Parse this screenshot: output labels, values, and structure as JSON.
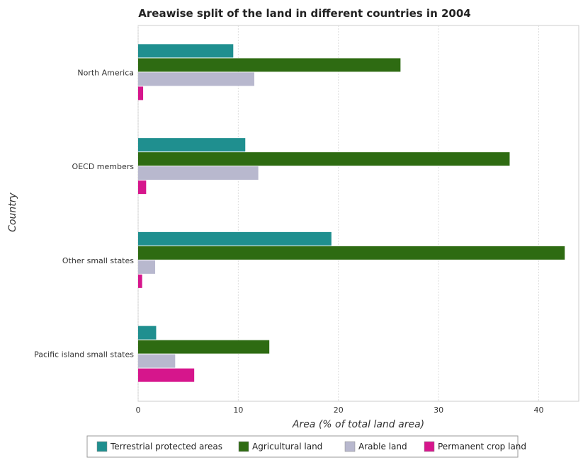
{
  "chart_data": {
    "type": "bar",
    "orientation": "horizontal",
    "title": "Areawise split of the land in different countries in 2004",
    "xlabel": "Area (% of total land area)",
    "ylabel": "Country",
    "categories": [
      "North America",
      "OECD members",
      "Other small states",
      "Pacific island small states"
    ],
    "xlim": [
      0,
      44
    ],
    "xticks": [
      0,
      10,
      20,
      30,
      40
    ],
    "grid": true,
    "legend_position": "bottom",
    "series": [
      {
        "name": "Terrestrial protected areas",
        "color": "#1f8f8f",
        "values": [
          9.5,
          10.7,
          19.3,
          1.8
        ]
      },
      {
        "name": "Agricultural land",
        "color": "#2e6b12",
        "values": [
          26.2,
          37.1,
          42.6,
          13.1
        ]
      },
      {
        "name": "Arable land",
        "color": "#b8b8ce",
        "values": [
          11.6,
          12.0,
          1.7,
          3.7
        ]
      },
      {
        "name": "Permanent crop land",
        "color": "#d6168c",
        "values": [
          0.5,
          0.8,
          0.4,
          5.6
        ]
      }
    ]
  }
}
